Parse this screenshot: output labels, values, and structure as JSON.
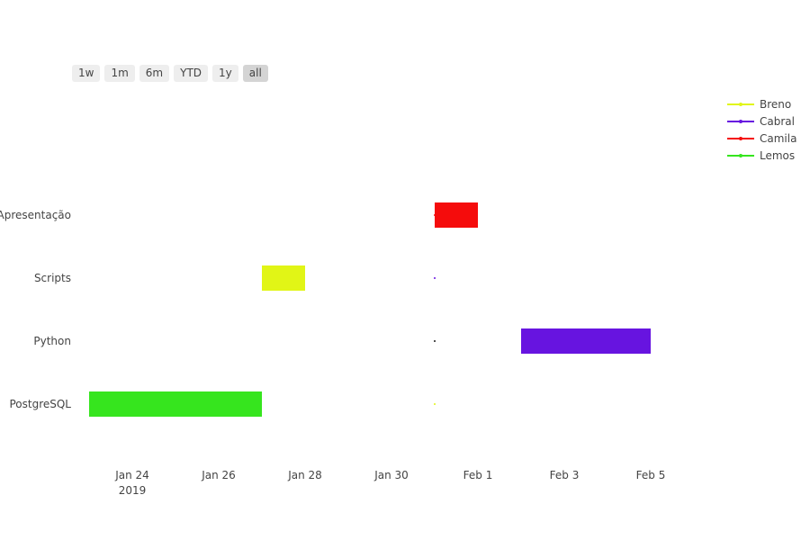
{
  "range_selector": {
    "buttons": [
      "1w",
      "1m",
      "6m",
      "YTD",
      "1y",
      "all"
    ],
    "active": "all"
  },
  "legend": {
    "items": [
      {
        "label": "Breno",
        "color": "#e1f516"
      },
      {
        "label": "Cabral",
        "color": "#6714e0"
      },
      {
        "label": "Camila",
        "color": "#f50c0c"
      },
      {
        "label": "Lemos",
        "color": "#36e51e"
      }
    ]
  },
  "chart_data": {
    "type": "gantt",
    "tasks": [
      "PostgreSQL",
      "Python",
      "Scripts",
      "Apresentação"
    ],
    "x_range": [
      "2019-01-23",
      "2019-02-07"
    ],
    "x_ticks": [
      {
        "date": "2019-01-24",
        "label": "Jan 24",
        "sublabel": "2019"
      },
      {
        "date": "2019-01-26",
        "label": "Jan 26"
      },
      {
        "date": "2019-01-28",
        "label": "Jan 28"
      },
      {
        "date": "2019-01-30",
        "label": "Jan 30"
      },
      {
        "date": "2019-02-01",
        "label": "Feb 1"
      },
      {
        "date": "2019-02-03",
        "label": "Feb 3"
      },
      {
        "date": "2019-02-05",
        "label": "Feb 5"
      }
    ],
    "bars": [
      {
        "task": "PostgreSQL",
        "resource": "Lemos",
        "start": "2019-01-23",
        "finish": "2019-01-27",
        "color": "#36e51e"
      },
      {
        "task": "Python",
        "resource": "Cabral",
        "start": "2019-02-02",
        "finish": "2019-02-05",
        "color": "#6714e0"
      },
      {
        "task": "Scripts",
        "resource": "Breno",
        "start": "2019-01-27",
        "finish": "2019-01-28",
        "color": "#e1f516"
      },
      {
        "task": "Apresentação",
        "resource": "Camila",
        "start": "2019-01-31",
        "finish": "2019-02-01",
        "color": "#f50c0c"
      }
    ],
    "legend": [
      "Breno",
      "Cabral",
      "Camila",
      "Lemos"
    ],
    "grid": false
  }
}
